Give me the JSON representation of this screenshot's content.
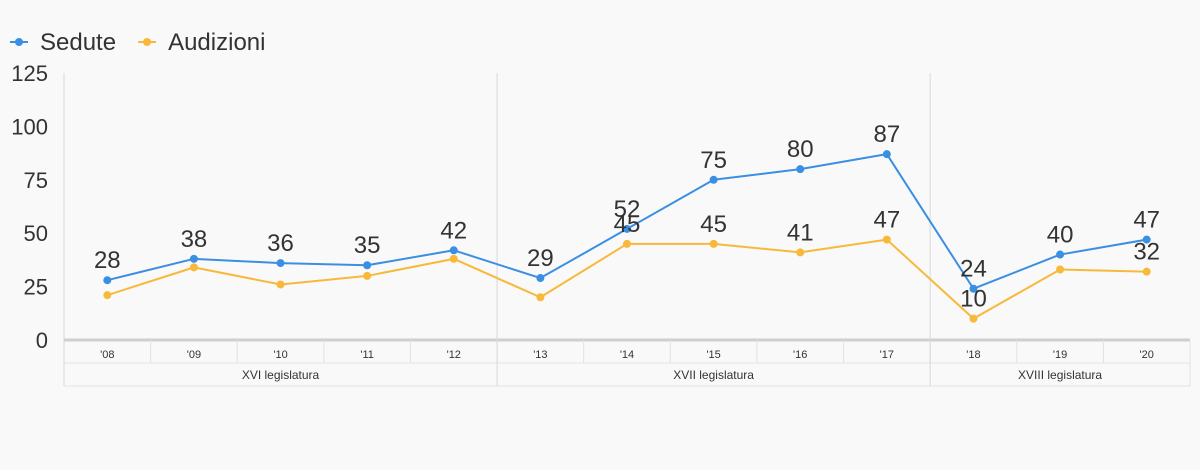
{
  "chart_data": {
    "type": "line",
    "categories": [
      "'08",
      "'09",
      "'10",
      "'11",
      "'12",
      "'13",
      "'14",
      "'15",
      "'16",
      "'17",
      "'18",
      "'19",
      "'20"
    ],
    "groups": [
      {
        "label": "XVI legislatura",
        "categories": [
          "'08",
          "'09",
          "'10",
          "'11",
          "'12"
        ]
      },
      {
        "label": "XVII legislatura",
        "categories": [
          "'13",
          "'14",
          "'15",
          "'16",
          "'17"
        ]
      },
      {
        "label": "XVIII legislatura",
        "categories": [
          "'18",
          "'19",
          "'20"
        ]
      }
    ],
    "series": [
      {
        "name": "Sedute",
        "color": "#3b8fe3",
        "values": [
          28,
          38,
          36,
          35,
          42,
          29,
          52,
          75,
          80,
          87,
          24,
          40,
          47
        ],
        "labels": [
          "28",
          "38",
          "36",
          "35",
          "42",
          "29",
          "52",
          "75",
          "80",
          "87",
          "24",
          "40",
          "47"
        ]
      },
      {
        "name": "Audizioni",
        "color": "#f8b93a",
        "values": [
          21,
          34,
          26,
          30,
          38,
          20,
          45,
          45,
          41,
          47,
          10,
          33,
          32
        ],
        "labels": [
          "",
          "",
          "",
          "",
          "",
          "",
          "45",
          "45",
          "41",
          "47",
          "10",
          "",
          "32"
        ]
      }
    ],
    "yticks": [
      0,
      25,
      50,
      75,
      100,
      125
    ],
    "ylim": [
      0,
      125
    ],
    "grid": false,
    "legend": "top-left"
  }
}
